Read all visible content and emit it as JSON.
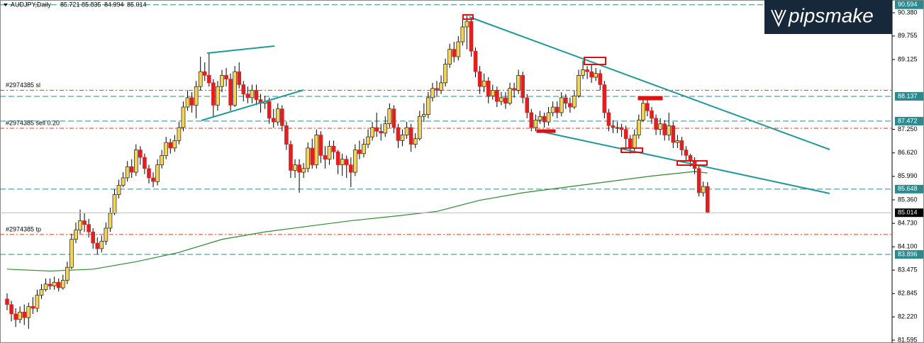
{
  "chart_data": {
    "type": "candlestick",
    "symbol": "AUDJPY,Daily",
    "logo": "pipsmake",
    "bull_color": "#f2d35b",
    "bear_color": "#e02020",
    "ma_color": "#2e8b2e",
    "level_color": "#2b8a8f",
    "order_color": "#e03a1a",
    "ylim": [
      81.595,
      90.38
    ],
    "yticks": [
      {
        "value": 90.38,
        "label": "90.380"
      },
      {
        "value": 89.755,
        "label": "89.755"
      },
      {
        "value": 89.125,
        "label": "89.125"
      },
      {
        "value": 87.25,
        "label": "87.250"
      },
      {
        "value": 86.62,
        "label": "86.620"
      },
      {
        "value": 85.99,
        "label": "85.990"
      },
      {
        "value": 85.36,
        "label": "85.360"
      },
      {
        "value": 84.73,
        "label": "84.730"
      },
      {
        "value": 84.1,
        "label": "84.100"
      },
      {
        "value": 83.475,
        "label": "83.475"
      },
      {
        "value": 82.845,
        "label": "82.845"
      },
      {
        "value": 82.22,
        "label": "82.220"
      },
      {
        "value": 81.595,
        "label": "81.595"
      }
    ],
    "levels": [
      90.594,
      88.137,
      87.472,
      85.648,
      83.896
    ],
    "orders": [
      {
        "label": "#2974385 sl",
        "price": 88.3
      },
      {
        "label": "#2974385 sell 0.20",
        "price": 87.28
      },
      {
        "label": "#2974385 tp",
        "price": 84.43
      }
    ],
    "ma": {
      "x": [
        0,
        10,
        20,
        30,
        40,
        50,
        60,
        70,
        80,
        90,
        100,
        110,
        120,
        130,
        140,
        150,
        160,
        163
      ],
      "values": [
        83.5,
        83.45,
        83.5,
        83.7,
        83.95,
        84.3,
        84.5,
        84.65,
        84.8,
        84.92,
        85.05,
        85.35,
        85.55,
        85.7,
        85.85,
        86.0,
        86.12,
        86.08
      ]
    },
    "ohlc": [
      [
        82.7,
        82.85,
        82.4,
        82.55
      ],
      [
        82.55,
        82.65,
        82.1,
        82.3
      ],
      [
        82.3,
        82.45,
        81.95,
        82.15
      ],
      [
        82.15,
        82.5,
        82.05,
        82.35
      ],
      [
        82.35,
        82.55,
        82.0,
        82.2
      ],
      [
        82.2,
        82.6,
        81.9,
        82.5
      ],
      [
        82.5,
        82.75,
        82.3,
        82.45
      ],
      [
        82.45,
        82.95,
        82.35,
        82.8
      ],
      [
        82.8,
        83.1,
        82.7,
        82.95
      ],
      [
        82.95,
        83.25,
        82.9,
        83.1
      ],
      [
        83.1,
        83.25,
        82.95,
        83.05
      ],
      [
        83.05,
        83.3,
        82.95,
        83.15
      ],
      [
        83.15,
        83.25,
        82.9,
        83.0
      ],
      [
        83.0,
        83.35,
        82.95,
        83.2
      ],
      [
        83.2,
        83.7,
        83.1,
        83.55
      ],
      [
        83.55,
        84.45,
        83.5,
        84.3
      ],
      [
        84.3,
        84.75,
        84.2,
        84.55
      ],
      [
        84.55,
        85.1,
        84.45,
        84.8
      ],
      [
        84.8,
        85.0,
        84.5,
        84.7
      ],
      [
        84.7,
        84.85,
        84.35,
        84.5
      ],
      [
        84.5,
        84.6,
        84.05,
        84.2
      ],
      [
        84.2,
        84.35,
        83.9,
        84.05
      ],
      [
        84.05,
        84.4,
        83.95,
        84.25
      ],
      [
        84.25,
        84.75,
        84.15,
        84.6
      ],
      [
        84.6,
        85.15,
        84.5,
        85.0
      ],
      [
        85.0,
        85.65,
        84.95,
        85.5
      ],
      [
        85.5,
        85.9,
        85.4,
        85.75
      ],
      [
        85.75,
        86.1,
        85.7,
        85.95
      ],
      [
        85.95,
        86.4,
        85.85,
        86.25
      ],
      [
        86.25,
        86.45,
        85.95,
        86.1
      ],
      [
        86.1,
        86.85,
        86.0,
        86.7
      ],
      [
        86.7,
        86.8,
        86.3,
        86.5
      ],
      [
        86.5,
        86.6,
        86.05,
        86.2
      ],
      [
        86.2,
        86.3,
        85.8,
        85.95
      ],
      [
        85.95,
        86.1,
        85.7,
        85.85
      ],
      [
        85.85,
        86.45,
        85.75,
        86.3
      ],
      [
        86.3,
        86.7,
        86.2,
        86.55
      ],
      [
        86.55,
        87.05,
        86.45,
        86.9
      ],
      [
        86.9,
        87.0,
        86.6,
        86.75
      ],
      [
        86.75,
        87.1,
        86.65,
        86.95
      ],
      [
        86.95,
        87.45,
        86.85,
        87.3
      ],
      [
        87.3,
        88.0,
        87.2,
        87.85
      ],
      [
        87.85,
        88.3,
        87.75,
        88.1
      ],
      [
        88.1,
        88.25,
        87.7,
        87.9
      ],
      [
        87.9,
        88.55,
        87.55,
        88.4
      ],
      [
        88.4,
        89.2,
        88.3,
        88.8
      ],
      [
        88.8,
        89.05,
        88.55,
        88.7
      ],
      [
        88.7,
        89.3,
        88.4,
        88.5
      ],
      [
        88.5,
        88.6,
        87.6,
        87.9
      ],
      [
        87.9,
        88.55,
        87.75,
        88.4
      ],
      [
        88.4,
        88.85,
        88.25,
        88.7
      ],
      [
        88.7,
        88.9,
        88.4,
        88.6
      ],
      [
        88.6,
        88.75,
        87.75,
        87.9
      ],
      [
        87.9,
        88.95,
        87.85,
        88.8
      ],
      [
        88.8,
        89.05,
        88.35,
        88.45
      ],
      [
        88.45,
        88.55,
        88.0,
        88.2
      ],
      [
        88.2,
        88.4,
        87.95,
        88.1
      ],
      [
        88.1,
        88.45,
        87.95,
        88.3
      ],
      [
        88.3,
        88.45,
        87.9,
        88.05
      ],
      [
        88.05,
        88.2,
        87.7,
        87.95
      ],
      [
        87.95,
        88.15,
        87.8,
        88.0
      ],
      [
        88.0,
        88.1,
        87.4,
        87.55
      ],
      [
        87.55,
        87.8,
        87.3,
        87.45
      ],
      [
        87.45,
        87.95,
        87.35,
        87.8
      ],
      [
        87.8,
        87.9,
        87.2,
        87.35
      ],
      [
        87.35,
        87.45,
        86.7,
        86.85
      ],
      [
        86.85,
        86.95,
        85.95,
        86.15
      ],
      [
        86.15,
        86.45,
        85.95,
        86.3
      ],
      [
        86.3,
        86.45,
        85.55,
        86.1
      ],
      [
        86.1,
        86.35,
        85.95,
        86.2
      ],
      [
        86.2,
        86.9,
        86.1,
        86.75
      ],
      [
        86.75,
        87.0,
        86.2,
        86.3
      ],
      [
        86.3,
        87.25,
        86.2,
        87.1
      ],
      [
        87.1,
        87.2,
        86.35,
        86.55
      ],
      [
        86.55,
        86.8,
        86.2,
        86.45
      ],
      [
        86.45,
        86.95,
        86.3,
        86.8
      ],
      [
        86.8,
        86.95,
        86.45,
        86.65
      ],
      [
        86.65,
        86.7,
        86.05,
        86.3
      ],
      [
        86.3,
        86.6,
        86.0,
        86.45
      ],
      [
        86.45,
        86.55,
        85.95,
        86.3
      ],
      [
        86.3,
        86.5,
        85.7,
        86.1
      ],
      [
        86.1,
        86.85,
        86.0,
        86.7
      ],
      [
        86.7,
        86.95,
        86.45,
        86.6
      ],
      [
        86.6,
        87.0,
        86.5,
        86.85
      ],
      [
        86.85,
        87.25,
        86.75,
        87.05
      ],
      [
        87.05,
        87.45,
        86.95,
        87.3
      ],
      [
        87.3,
        87.7,
        87.05,
        87.2
      ],
      [
        87.2,
        87.4,
        86.95,
        87.15
      ],
      [
        87.15,
        87.6,
        87.05,
        87.4
      ],
      [
        87.4,
        87.95,
        87.3,
        87.8
      ],
      [
        87.8,
        87.9,
        87.15,
        87.3
      ],
      [
        87.3,
        87.4,
        86.75,
        86.95
      ],
      [
        86.95,
        87.25,
        86.8,
        87.1
      ],
      [
        87.1,
        87.45,
        87.0,
        87.3
      ],
      [
        87.3,
        87.4,
        86.65,
        86.85
      ],
      [
        86.85,
        87.15,
        86.75,
        87.0
      ],
      [
        87.0,
        87.75,
        86.95,
        87.6
      ],
      [
        87.6,
        87.95,
        87.45,
        87.65
      ],
      [
        87.65,
        88.25,
        87.55,
        88.1
      ],
      [
        88.1,
        88.5,
        88.0,
        88.35
      ],
      [
        88.35,
        88.55,
        88.15,
        88.3
      ],
      [
        88.3,
        88.7,
        88.2,
        88.5
      ],
      [
        88.5,
        89.15,
        88.4,
        89.0
      ],
      [
        89.0,
        89.55,
        88.9,
        89.4
      ],
      [
        89.4,
        89.6,
        89.05,
        89.2
      ],
      [
        89.2,
        89.75,
        89.1,
        89.6
      ],
      [
        89.6,
        90.25,
        89.5,
        90.0
      ],
      [
        90.0,
        90.3,
        89.4,
        90.15
      ],
      [
        90.15,
        90.2,
        89.2,
        89.35
      ],
      [
        89.35,
        89.45,
        88.65,
        88.8
      ],
      [
        88.8,
        88.95,
        88.2,
        88.4
      ],
      [
        88.4,
        88.75,
        88.25,
        88.55
      ],
      [
        88.55,
        88.65,
        87.95,
        88.15
      ],
      [
        88.15,
        88.45,
        88.05,
        88.3
      ],
      [
        88.3,
        88.4,
        87.85,
        88.0
      ],
      [
        88.0,
        88.25,
        87.9,
        88.1
      ],
      [
        88.1,
        88.25,
        87.8,
        87.95
      ],
      [
        87.95,
        88.5,
        87.9,
        88.35
      ],
      [
        88.35,
        88.5,
        88.1,
        88.3
      ],
      [
        88.3,
        88.85,
        88.2,
        88.7
      ],
      [
        88.7,
        88.8,
        87.95,
        88.1
      ],
      [
        88.1,
        88.2,
        87.55,
        87.7
      ],
      [
        87.7,
        87.8,
        87.2,
        87.3
      ],
      [
        87.3,
        87.65,
        87.2,
        87.5
      ],
      [
        87.5,
        87.75,
        87.4,
        87.6
      ],
      [
        87.6,
        87.7,
        87.3,
        87.45
      ],
      [
        87.45,
        87.85,
        87.35,
        87.7
      ],
      [
        87.7,
        88.0,
        87.6,
        87.85
      ],
      [
        87.85,
        88.0,
        87.55,
        87.7
      ],
      [
        87.7,
        88.25,
        87.6,
        88.1
      ],
      [
        88.1,
        88.2,
        87.8,
        87.95
      ],
      [
        87.95,
        88.1,
        87.7,
        87.85
      ],
      [
        87.85,
        88.3,
        87.8,
        88.15
      ],
      [
        88.15,
        88.85,
        88.1,
        88.7
      ],
      [
        88.7,
        89.1,
        88.6,
        88.85
      ],
      [
        88.85,
        88.95,
        88.6,
        88.8
      ],
      [
        88.8,
        89.0,
        88.5,
        88.65
      ],
      [
        88.65,
        88.9,
        88.55,
        88.75
      ],
      [
        88.75,
        88.85,
        88.3,
        88.45
      ],
      [
        88.45,
        88.55,
        87.55,
        87.7
      ],
      [
        87.7,
        87.8,
        87.2,
        87.35
      ],
      [
        87.35,
        87.5,
        87.15,
        87.3
      ],
      [
        87.3,
        87.45,
        87.15,
        87.3
      ],
      [
        87.3,
        87.4,
        87.05,
        87.25
      ],
      [
        87.25,
        87.35,
        86.7,
        87.0
      ],
      [
        87.0,
        87.1,
        86.6,
        86.75
      ],
      [
        86.75,
        87.25,
        86.65,
        87.1
      ],
      [
        87.1,
        87.65,
        87.0,
        87.5
      ],
      [
        87.5,
        88.1,
        87.45,
        87.95
      ],
      [
        87.95,
        88.05,
        87.6,
        87.75
      ],
      [
        87.75,
        87.85,
        87.4,
        87.55
      ],
      [
        87.55,
        87.65,
        87.1,
        87.25
      ],
      [
        87.25,
        87.55,
        87.1,
        87.4
      ],
      [
        87.4,
        87.5,
        86.95,
        87.1
      ],
      [
        87.1,
        87.7,
        86.95,
        87.35
      ],
      [
        87.35,
        87.45,
        86.75,
        86.9
      ],
      [
        86.9,
        87.1,
        86.75,
        86.95
      ],
      [
        86.95,
        87.05,
        86.55,
        86.7
      ],
      [
        86.7,
        86.8,
        86.4,
        86.55
      ],
      [
        86.55,
        86.6,
        86.25,
        86.4
      ],
      [
        86.4,
        86.5,
        86.05,
        86.2
      ],
      [
        86.2,
        86.3,
        85.45,
        85.55
      ],
      [
        85.55,
        85.85,
        85.45,
        85.72
      ],
      [
        85.721,
        85.835,
        84.994,
        85.014
      ]
    ]
  }
}
